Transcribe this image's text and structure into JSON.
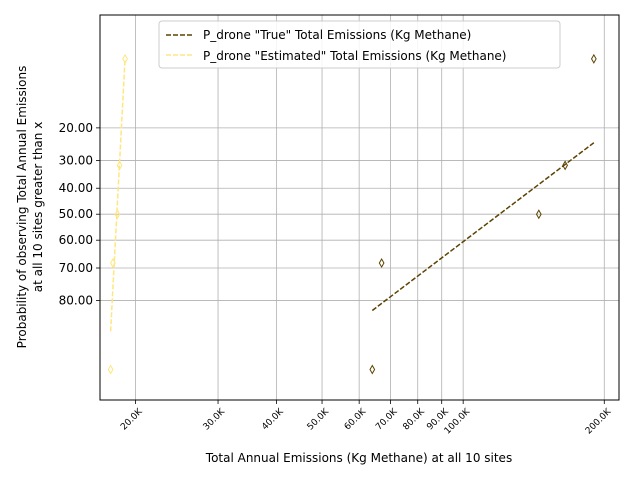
{
  "chart_data": {
    "type": "scatter",
    "title": "",
    "xlabel": "Total Annual Emissions (Kg Methane) at all 10 sites",
    "ylabel_lines": [
      "Probability of observing Total Annual Emissions",
      "at all 10 sites greater than x"
    ],
    "x_scale": "log",
    "y_scale": "probability",
    "xlim": [
      16800,
      215000
    ],
    "ylim": [
      2.6,
      96.5
    ],
    "grid": true,
    "legend_position": "top-right",
    "x_ticks": [
      {
        "value": 20000,
        "label": "20.0K"
      },
      {
        "value": 30000,
        "label": "30.0K"
      },
      {
        "value": 40000,
        "label": "40.0K"
      },
      {
        "value": 50000,
        "label": "50.0K"
      },
      {
        "value": 60000,
        "label": "60.0K"
      },
      {
        "value": 70000,
        "label": "70.0K"
      },
      {
        "value": 80000,
        "label": "80.0K"
      },
      {
        "value": 90000,
        "label": "90.0K"
      },
      {
        "value": 100000,
        "label": "100.0K"
      },
      {
        "value": 200000,
        "label": "200.0K"
      }
    ],
    "y_ticks": [
      {
        "value": 20,
        "label": "20.00"
      },
      {
        "value": 30,
        "label": "30.00"
      },
      {
        "value": 40,
        "label": "40.00"
      },
      {
        "value": 50,
        "label": "50.00"
      },
      {
        "value": 60,
        "label": "60.00"
      },
      {
        "value": 70,
        "label": "70.00"
      },
      {
        "value": 80,
        "label": "80.00"
      }
    ],
    "series": [
      {
        "name": "P_drone \"True\" Total Emissions (Kg Methane)",
        "color": "#5c4300",
        "points": [
          {
            "x": 64000,
            "y": 93.5
          },
          {
            "x": 67000,
            "y": 68.3
          },
          {
            "x": 145000,
            "y": 50.0
          },
          {
            "x": 165000,
            "y": 31.7
          },
          {
            "x": 190000,
            "y": 6.5
          }
        ],
        "fit_line": [
          {
            "x": 64000,
            "y": 82.6
          },
          {
            "x": 190000,
            "y": 24.3
          }
        ]
      },
      {
        "name": "P_drone \"Estimated\" Total Emissions (Kg Methane)",
        "color": "#ffe680",
        "points": [
          {
            "x": 17700,
            "y": 93.5
          },
          {
            "x": 17900,
            "y": 68.3
          },
          {
            "x": 18300,
            "y": 50.0
          },
          {
            "x": 18500,
            "y": 31.7
          },
          {
            "x": 19000,
            "y": 6.5
          }
        ],
        "fit_line": [
          {
            "x": 17700,
            "y": 87.3
          },
          {
            "x": 19000,
            "y": 6.5
          }
        ]
      }
    ]
  }
}
